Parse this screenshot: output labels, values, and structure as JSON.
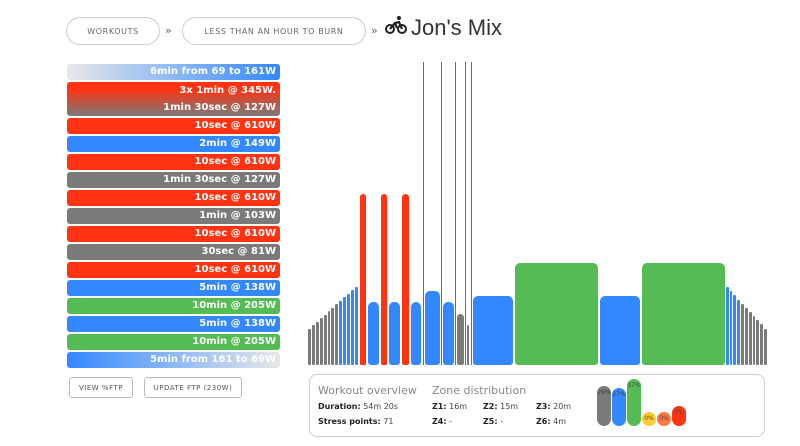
{
  "breadcrumb": {
    "workouts": "WORKOUTS",
    "category": "LESS THAN AN HOUR TO BURN",
    "sep": "»",
    "title": "Jon's Mix",
    "icon": "cyclist-icon"
  },
  "intervals": [
    {
      "label": "6min from 69 to 161W",
      "zone": "ramp-up"
    },
    {
      "label": "3x 1min @ 345W.",
      "label2": "1min 30sec @ 127W",
      "zone": "repeat"
    },
    {
      "label": "10sec @ 610W",
      "zone": "z6"
    },
    {
      "label": "2min @ 149W",
      "zone": "z2"
    },
    {
      "label": "10sec @ 610W",
      "zone": "z6"
    },
    {
      "label": "1min 30sec @ 127W",
      "zone": "z1"
    },
    {
      "label": "10sec @ 610W",
      "zone": "z6"
    },
    {
      "label": "1min @ 103W",
      "zone": "z1"
    },
    {
      "label": "10sec @ 610W",
      "zone": "z6"
    },
    {
      "label": "30sec @ 81W",
      "zone": "z1"
    },
    {
      "label": "10sec @ 610W",
      "zone": "z6"
    },
    {
      "label": "5min @ 138W",
      "zone": "z2"
    },
    {
      "label": "10min @ 205W",
      "zone": "z3"
    },
    {
      "label": "5min @ 138W",
      "zone": "z2"
    },
    {
      "label": "10min @ 205W",
      "zone": "z3"
    },
    {
      "label": "5min from 161 to 69W",
      "zone": "ramp-down"
    }
  ],
  "buttons": {
    "view_ftp": "VIEW %FTP",
    "update_ftp": "UPDATE FTP (230W)"
  },
  "overview": {
    "title": "Workout overview",
    "duration_label": "Duration:",
    "duration": "54m 20s",
    "stress_label": "Stress points:",
    "stress": "71"
  },
  "zones": {
    "title": "Zone distribution",
    "z1": "Z1:",
    "z1v": "16m",
    "z2": "Z2:",
    "z2v": "15m",
    "z3": "Z3:",
    "z3v": "20m",
    "z4": "Z4:",
    "z4v": "-",
    "z5": "Z5:",
    "z5v": "-",
    "z6": "Z6:",
    "z6v": "4m",
    "pct": [
      {
        "label": "29%",
        "value": 29,
        "color": "#7a7a7a"
      },
      {
        "label": "27%",
        "value": 27,
        "color": "#3388ff"
      },
      {
        "label": "37%",
        "value": 37,
        "color": "#55bb55"
      },
      {
        "label": "0%",
        "value": 0,
        "color": "#ffcc33"
      },
      {
        "label": "0%",
        "value": 0,
        "color": "#ff7744"
      },
      {
        "label": "7%",
        "value": 7,
        "color": "#ff3311"
      }
    ]
  },
  "colors": {
    "z1": "#7a7a7a",
    "z2": "#3388ff",
    "z3": "#55bb55",
    "z6": "#ff3311"
  },
  "chart_data": {
    "type": "bar",
    "ftp": 230,
    "ymax": 610,
    "segments": [
      {
        "dur": 360,
        "from": 69,
        "to": 161
      },
      {
        "dur": 60,
        "w": 345
      },
      {
        "dur": 90,
        "w": 127
      },
      {
        "dur": 60,
        "w": 345
      },
      {
        "dur": 90,
        "w": 127
      },
      {
        "dur": 60,
        "w": 345
      },
      {
        "dur": 90,
        "w": 127
      },
      {
        "dur": 10,
        "w": 610
      },
      {
        "dur": 120,
        "w": 149
      },
      {
        "dur": 10,
        "w": 610
      },
      {
        "dur": 90,
        "w": 127
      },
      {
        "dur": 10,
        "w": 610
      },
      {
        "dur": 60,
        "w": 103
      },
      {
        "dur": 10,
        "w": 610
      },
      {
        "dur": 30,
        "w": 81
      },
      {
        "dur": 10,
        "w": 610
      },
      {
        "dur": 300,
        "w": 138
      },
      {
        "dur": 600,
        "w": 205
      },
      {
        "dur": 300,
        "w": 138
      },
      {
        "dur": 600,
        "w": 205
      },
      {
        "dur": 300,
        "from": 161,
        "to": 69
      }
    ]
  }
}
